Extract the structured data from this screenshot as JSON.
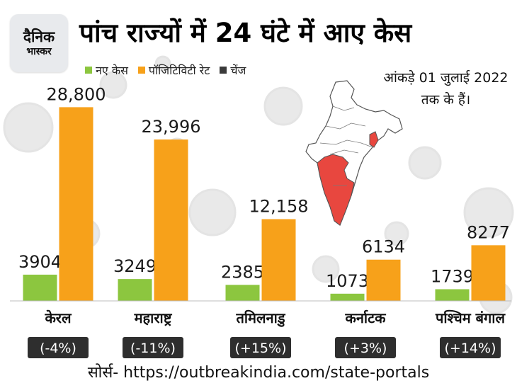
{
  "brand": {
    "line1": "दैनिक",
    "line2": "भास्कर"
  },
  "title": "पांच राज्यों में 24 घंटे में आए केस",
  "legend": [
    {
      "label": "नए केस",
      "color": "#8cc63f"
    },
    {
      "label": "पॉजिटिविटी रेट",
      "color": "#f7a11a"
    },
    {
      "label": "चेंज",
      "color": "#3a3a3a"
    }
  ],
  "note": "आंकड़े 01 जुलाई 2022 तक के हैं।",
  "source": "सोर्स- https://outbreakindia.com/state-portals",
  "chart_data": {
    "type": "bar",
    "categories": [
      "केरल",
      "महाराष्ट्र",
      "तमिलनाडु",
      "कर्नाटक",
      "पश्चिम बंगाल"
    ],
    "series": [
      {
        "name": "नए केस",
        "values": [
          3904,
          3249,
          2385,
          1073,
          1739
        ],
        "labels": [
          "3904",
          "3249",
          "2385",
          "1073",
          "1739"
        ],
        "color": "#8cc63f"
      },
      {
        "name": "पॉजिटिविटी रेट",
        "values": [
          28800,
          23996,
          12158,
          6134,
          8277
        ],
        "labels": [
          "28,800",
          "23,996",
          "12,158",
          "6134",
          "8277"
        ],
        "color": "#f7a11a"
      }
    ],
    "change": [
      "(-4%)",
      "(-11%)",
      "(+15%)",
      "(+3%)",
      "(+14%)"
    ],
    "ylim": [
      0,
      30000
    ]
  },
  "map": {
    "highlight_color": "#e8473f",
    "base_color": "#ffffff",
    "outline_color": "#555555"
  }
}
